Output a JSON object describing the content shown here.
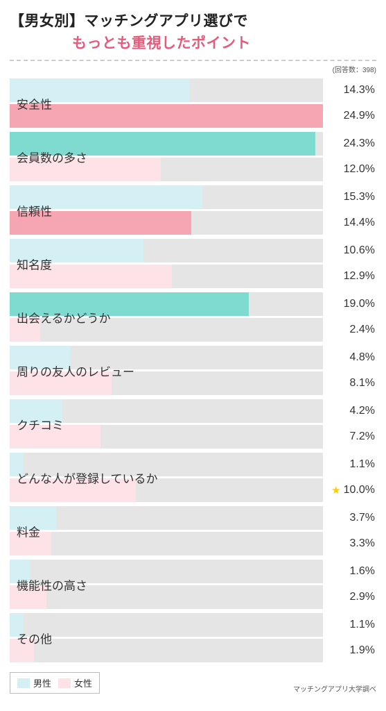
{
  "title_line1": "【男女別】マッチングアプリ選びで",
  "title_line2": "もっとも重視したポイント",
  "title2_color": "#e85a7a",
  "respondents_label": "(回答数：398)",
  "bar_track_color": "#e5e5e5",
  "bar_track_ratio": 85.5,
  "male": {
    "label": "男性",
    "color_strong": "#7fdbd0",
    "color_light": "#d4f0f5"
  },
  "female": {
    "label": "女性",
    "color_strong": "#f6a5b3",
    "color_light": "#fde3e8"
  },
  "max_value": 24.9,
  "star_color": "#ffcc00",
  "items": [
    {
      "label": "安全性",
      "male": 14.3,
      "female": 24.9,
      "m_strong": false,
      "f_strong": true,
      "star": null
    },
    {
      "label": "会員数の多さ",
      "male": 24.3,
      "female": 12.0,
      "m_strong": true,
      "f_strong": false,
      "star": null
    },
    {
      "label": "信頼性",
      "male": 15.3,
      "female": 14.4,
      "m_strong": false,
      "f_strong": true,
      "star": null
    },
    {
      "label": "知名度",
      "male": 10.6,
      "female": 12.9,
      "m_strong": false,
      "f_strong": false,
      "star": null
    },
    {
      "label": "出会えるかどうか",
      "male": 19.0,
      "female": 2.4,
      "m_strong": true,
      "f_strong": false,
      "star": null
    },
    {
      "label": "周りの友人のレビュー",
      "male": 4.8,
      "female": 8.1,
      "m_strong": false,
      "f_strong": false,
      "star": null
    },
    {
      "label": "クチコミ",
      "male": 4.2,
      "female": 7.2,
      "m_strong": false,
      "f_strong": false,
      "star": null
    },
    {
      "label": "どんな人が登録しているか",
      "male": 1.1,
      "female": 10.0,
      "m_strong": false,
      "f_strong": false,
      "star": "female"
    },
    {
      "label": "料金",
      "male": 3.7,
      "female": 3.3,
      "m_strong": false,
      "f_strong": false,
      "star": null
    },
    {
      "label": "機能性の高さ",
      "male": 1.6,
      "female": 2.9,
      "m_strong": false,
      "f_strong": false,
      "star": null
    },
    {
      "label": "その他",
      "male": 1.1,
      "female": 1.9,
      "m_strong": false,
      "f_strong": false,
      "star": null
    }
  ],
  "source_label": "マッチングアプリ大学調べ"
}
